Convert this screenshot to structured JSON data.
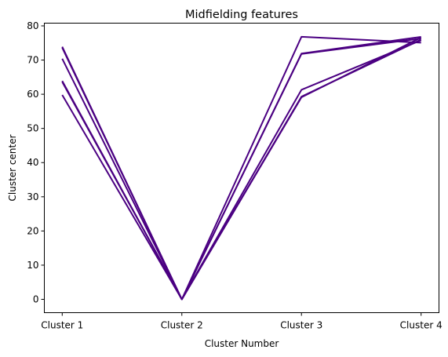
{
  "chart_data": {
    "type": "line",
    "title": "Midfielding features",
    "xlabel": "Cluster Number",
    "ylabel": "Cluster center",
    "categories": [
      "Cluster 1",
      "Cluster 2",
      "Cluster 3",
      "Cluster 4"
    ],
    "yticks": [
      0,
      10,
      20,
      30,
      40,
      50,
      60,
      70,
      80
    ],
    "ylim": [
      -3.9,
      80.8
    ],
    "grid": false,
    "line_color": "#4b0082",
    "series": [
      {
        "values": [
          73.9,
          0,
          76.8,
          75.1
        ]
      },
      {
        "values": [
          73.6,
          0,
          71.8,
          76.3
        ]
      },
      {
        "values": [
          70.4,
          0,
          71.9,
          76.8
        ]
      },
      {
        "values": [
          63.9,
          0,
          61.3,
          75.8
        ]
      },
      {
        "values": [
          63.6,
          0,
          59.3,
          76.0
        ]
      },
      {
        "values": [
          59.8,
          0,
          59.1,
          76.6
        ]
      }
    ]
  }
}
